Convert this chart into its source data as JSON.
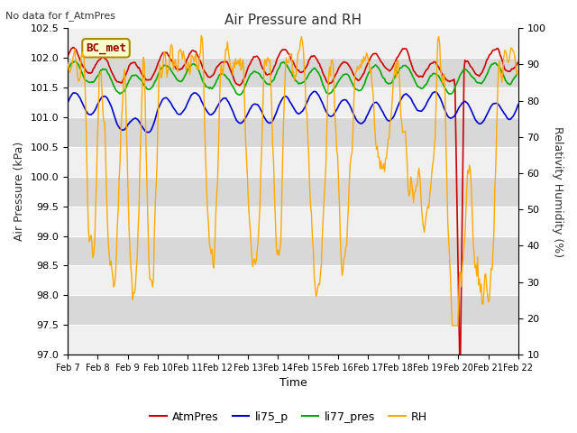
{
  "title": "Air Pressure and RH",
  "subtitle": "No data for f_AtmPres",
  "xlabel": "Time",
  "ylabel_left": "Air Pressure (kPa)",
  "ylabel_right": "Relativity Humidity (%)",
  "ylim_left": [
    97.0,
    102.5
  ],
  "ylim_right": [
    10,
    100
  ],
  "yticks_left": [
    97.0,
    97.5,
    98.0,
    98.5,
    99.0,
    99.5,
    100.0,
    100.5,
    101.0,
    101.5,
    102.0,
    102.5
  ],
  "yticks_right": [
    10,
    20,
    30,
    40,
    50,
    60,
    70,
    80,
    90,
    100
  ],
  "x_labels": [
    "Feb 7",
    "Feb 8",
    "Feb 9",
    "Feb 10",
    "Feb 11",
    "Feb 12",
    "Feb 13",
    "Feb 14",
    "Feb 15",
    "Feb 16",
    "Feb 17",
    "Feb 18",
    "Feb 19",
    "Feb 20",
    "Feb 21",
    "Feb 22"
  ],
  "legend_labels": [
    "AtmPres",
    "li75_p",
    "li77_pres",
    "RH"
  ],
  "legend_colors": [
    "#cc0000",
    "#0000cc",
    "#00aa00",
    "#ffaa00"
  ],
  "bc_met_label": "BC_met",
  "bc_met_color": "#990000",
  "bc_met_bg": "#ffffcc",
  "line_colors": [
    "#cc0000",
    "#0000cc",
    "#00aa00",
    "#ffaa00"
  ],
  "bg_color": "#ffffff",
  "plot_bg_light": "#f0f0f0",
  "plot_bg_dark": "#d8d8d8",
  "grid_color": "#ffffff",
  "title_color": "#333333",
  "n_points": 500,
  "seed": 42
}
